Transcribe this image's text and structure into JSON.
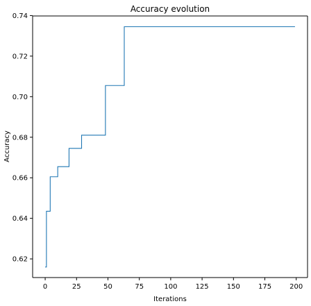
{
  "chart_data": {
    "type": "line",
    "title": "Accuracy evolution",
    "xlabel": "Iterations",
    "ylabel": "Accuracy",
    "xlim": [
      -10,
      209
    ],
    "ylim": [
      0.6108,
      0.7398
    ],
    "xticks": [
      0,
      25,
      50,
      75,
      100,
      125,
      150,
      175,
      200
    ],
    "yticks": [
      0.62,
      0.64,
      0.66,
      0.68,
      0.7,
      0.72,
      0.74
    ],
    "ytick_labels": [
      "0.62",
      "0.64",
      "0.66",
      "0.68",
      "0.70",
      "0.72",
      "0.74"
    ],
    "grid": false,
    "series": [
      {
        "color": "#1f77b4",
        "x": [
          0,
          1,
          1,
          4,
          4,
          10,
          10,
          19,
          19,
          29,
          29,
          48,
          48,
          63,
          63,
          199
        ],
        "y": [
          0.616,
          0.616,
          0.6435,
          0.6435,
          0.6605,
          0.6605,
          0.6655,
          0.6655,
          0.6745,
          0.6745,
          0.681,
          0.681,
          0.7055,
          0.7055,
          0.7345,
          0.7345
        ]
      }
    ]
  }
}
